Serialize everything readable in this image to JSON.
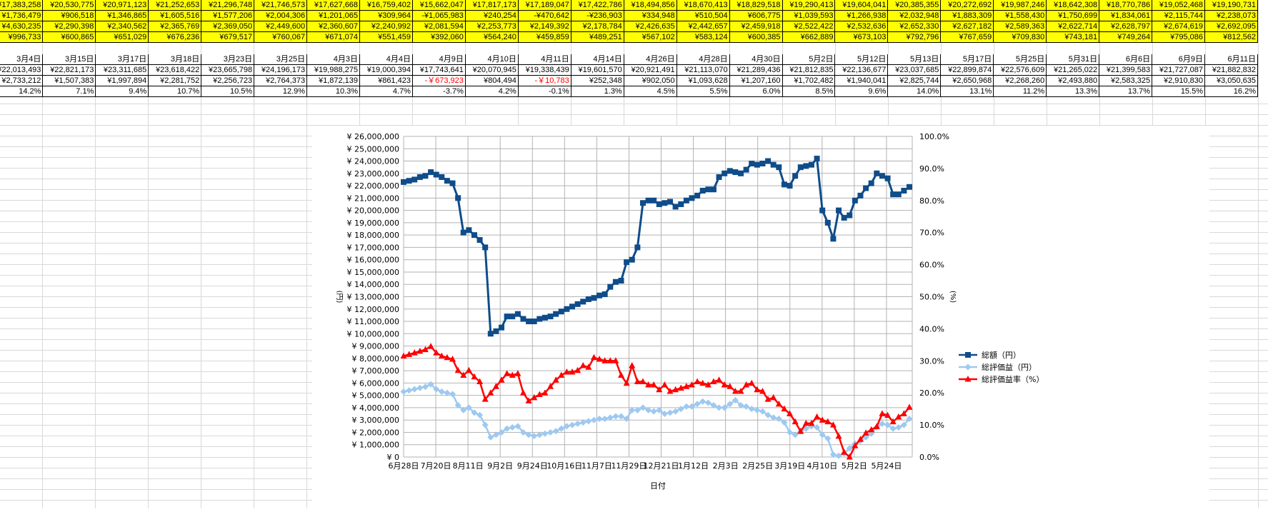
{
  "sheet": {
    "yellow_rows": [
      [
        "¥17,383,258",
        "¥20,530,775",
        "¥20,971,123",
        "¥21,252,653",
        "¥21,296,748",
        "¥21,746,573",
        "¥17,627,668",
        "¥16,759,402",
        "¥15,662,047",
        "¥17,817,173",
        "¥17,189,047",
        "¥17,422,786",
        "¥18,494,856",
        "¥18,670,413",
        "¥18,829,518",
        "¥19,290,413",
        "¥19,604,041",
        "¥20,385,355",
        "¥20,272,692",
        "¥19,987,246",
        "¥18,642,308",
        "¥18,770,786",
        "¥19,052,468",
        "¥19,190,731"
      ],
      [
        "¥1,736,479",
        "¥906,518",
        "¥1,346,865",
        "¥1,605,516",
        "¥1,577,206",
        "¥2,004,306",
        "¥1,201,065",
        "¥309,964",
        "-¥1,065,983",
        "¥240,254",
        "-¥470,642",
        "-¥236,903",
        "¥334,948",
        "¥510,504",
        "¥606,775",
        "¥1,039,593",
        "¥1,266,938",
        "¥2,032,948",
        "¥1,883,309",
        "¥1,558,430",
        "¥1,750,699",
        "¥1,834,061",
        "¥2,115,744",
        "¥2,238,073"
      ],
      [
        "¥4,630,235",
        "¥2,290,398",
        "¥2,340,562",
        "¥2,365,769",
        "¥2,369,050",
        "¥2,449,600",
        "¥2,360,607",
        "¥2,240,992",
        "¥2,081,594",
        "¥2,253,773",
        "¥2,149,392",
        "¥2,178,784",
        "¥2,426,635",
        "¥2,442,657",
        "¥2,459,918",
        "¥2,522,422",
        "¥2,532,636",
        "¥2,652,330",
        "¥2,627,182",
        "¥2,589,363",
        "¥2,622,714",
        "¥2,628,797",
        "¥2,674,619",
        "¥2,692,095"
      ],
      [
        "¥996,733",
        "¥600,865",
        "¥651,029",
        "¥676,236",
        "¥679,517",
        "¥760,067",
        "¥671,074",
        "¥551,459",
        "¥392,060",
        "¥564,240",
        "¥459,859",
        "¥489,251",
        "¥567,102",
        "¥583,124",
        "¥600,385",
        "¥662,889",
        "¥673,103",
        "¥792,796",
        "¥767,659",
        "¥709,830",
        "¥743,181",
        "¥749,264",
        "¥795,086",
        "¥812,562"
      ]
    ],
    "dates": [
      "3月4日",
      "3月15日",
      "3月17日",
      "3月18日",
      "3月23日",
      "3月25日",
      "4月3日",
      "4月4日",
      "4月9日",
      "4月10日",
      "4月11日",
      "4月14日",
      "4月26日",
      "4月28日",
      "4月30日",
      "5月2日",
      "5月12日",
      "5月13日",
      "5月17日",
      "5月25日",
      "5月31日",
      "6月6日",
      "6月9日",
      "6月11日"
    ],
    "totals": [
      "¥22,013,493",
      "¥22,821,173",
      "¥23,311,685",
      "¥23,618,422",
      "¥23,665,798",
      "¥24,196,173",
      "¥19,988,275",
      "¥19,000,394",
      "¥17,743,641",
      "¥20,070,945",
      "¥19,338,439",
      "¥19,601,570",
      "¥20,921,491",
      "¥21,113,070",
      "¥21,289,436",
      "¥21,812,835",
      "¥22,136,677",
      "¥23,037,685",
      "¥22,899,874",
      "¥22,576,609",
      "¥21,265,022",
      "¥21,399,583",
      "¥21,727,087",
      "¥21,882,832"
    ],
    "gains": [
      "¥2,733,212",
      "¥1,507,383",
      "¥1,997,894",
      "¥2,281,752",
      "¥2,256,723",
      "¥2,764,373",
      "¥1,872,139",
      "¥861,423",
      "-￥673,923",
      "¥804,494",
      "-￥10,783",
      "¥252,348",
      "¥902,050",
      "¥1,093,628",
      "¥1,207,160",
      "¥1,702,482",
      "¥1,940,041",
      "¥2,825,744",
      "¥2,650,968",
      "¥2,268,260",
      "¥2,493,880",
      "¥2,583,325",
      "¥2,910,830",
      "¥3,050,635"
    ],
    "rates": [
      "14.2%",
      "7.1%",
      "9.4%",
      "10.7%",
      "10.5%",
      "12.9%",
      "10.3%",
      "4.7%",
      "-3.7%",
      "4.2%",
      "-0.1%",
      "1.3%",
      "4.5%",
      "5.5%",
      "6.0%",
      "8.5%",
      "9.6%",
      "14.0%",
      "13.1%",
      "11.2%",
      "13.3%",
      "13.7%",
      "15.5%",
      "16.2%"
    ]
  },
  "colors": {
    "total": "#0f4c8a",
    "gain": "#9ec9f0",
    "rate": "#ff0000",
    "grid": "#b3b3b3",
    "negative_text": "#ff0000"
  },
  "chart_data": {
    "type": "line",
    "xlabel": "日付",
    "ylabel_left": "(円)",
    "ylabel_right": "(%)",
    "ylim_left": [
      0,
      26000000
    ],
    "ylim_right": [
      0,
      100
    ],
    "left_ticks": [
      "¥ 26,000,000",
      "¥ 25,000,000",
      "¥ 24,000,000",
      "¥ 23,000,000",
      "¥ 22,000,000",
      "¥ 21,000,000",
      "¥ 20,000,000",
      "¥ 19,000,000",
      "¥ 18,000,000",
      "¥ 17,000,000",
      "¥ 16,000,000",
      "¥ 15,000,000",
      "¥ 14,000,000",
      "¥ 13,000,000",
      "¥ 12,000,000",
      "¥ 11,000,000",
      "¥ 10,000,000",
      "¥ 9,000,000",
      "¥ 8,000,000",
      "¥ 7,000,000",
      "¥ 6,000,000",
      "¥ 5,000,000",
      "¥ 4,000,000",
      "¥ 3,000,000",
      "¥ 2,000,000",
      "¥ 1,000,000",
      "¥ 0"
    ],
    "right_ticks": [
      "100.0%",
      "90.0%",
      "80.0%",
      "70.0%",
      "60.0%",
      "50.0%",
      "40.0%",
      "30.0%",
      "20.0%",
      "10.0%",
      "0.0%"
    ],
    "x_tick_labels": [
      "6月28日",
      "7月20日",
      "8月11日",
      "9月2日",
      "9月24日",
      "10月16日",
      "11月7日",
      "11月29日",
      "12月21日",
      "1月12日",
      "2月3日",
      "2月25日",
      "3月19日",
      "4月10日",
      "5月2日",
      "5月24日"
    ],
    "grid": true,
    "legend_placement": "right",
    "series": [
      {
        "name": "総額（円）",
        "values": [
          22300000,
          22400000,
          22500000,
          22700000,
          22800000,
          23100000,
          22900000,
          22700000,
          22400000,
          22200000,
          21000000,
          18200000,
          18400000,
          18000000,
          17600000,
          17000000,
          10000000,
          10200000,
          10500000,
          11400000,
          11400000,
          11600000,
          11200000,
          11000000,
          11000000,
          11200000,
          11300000,
          11400000,
          11600000,
          11800000,
          12000000,
          12200000,
          12400000,
          12600000,
          12800000,
          12900000,
          13100000,
          13200000,
          13800000,
          14200000,
          14300000,
          15800000,
          16000000,
          17000000,
          20600000,
          20800000,
          20800000,
          20500000,
          20600000,
          20700000,
          20300000,
          20500000,
          20800000,
          21000000,
          21200000,
          21600000,
          21700000,
          21700000,
          22700000,
          23000000,
          23200000,
          23100000,
          23000000,
          23300000,
          23800000,
          23700000,
          23800000,
          24000000,
          23700000,
          23500000,
          22100000,
          22000000,
          22800000,
          23500000,
          23600000,
          23700000,
          24200000,
          20000000,
          19000000,
          17700000,
          20000000,
          19400000,
          19600000,
          20800000,
          21200000,
          21800000,
          22200000,
          23000000,
          22800000,
          22600000,
          21300000,
          21300000,
          21600000,
          21900000
        ]
      },
      {
        "name": "総評価益（円）",
        "values": [
          5300000,
          5400000,
          5500000,
          5600000,
          5700000,
          5900000,
          5500000,
          5300000,
          5200000,
          5100000,
          4200000,
          3800000,
          4000000,
          3600000,
          3400000,
          2600000,
          1600000,
          1800000,
          2000000,
          2300000,
          2400000,
          2500000,
          2000000,
          1800000,
          1700000,
          1800000,
          1900000,
          2000000,
          2100000,
          2300000,
          2500000,
          2600000,
          2700000,
          2800000,
          2900000,
          3000000,
          3100000,
          3100000,
          3200000,
          3300000,
          3300000,
          3100000,
          3800000,
          3800000,
          4000000,
          3800000,
          3700000,
          3800000,
          3500000,
          3600000,
          3700000,
          3900000,
          4100000,
          4100000,
          4300000,
          4500000,
          4400000,
          4200000,
          4000000,
          4000000,
          4300000,
          4600000,
          4200000,
          4100000,
          3900000,
          3800000,
          3700000,
          3400000,
          3200000,
          3100000,
          2800000,
          2000000,
          1800000,
          2100000,
          2300000,
          2500000,
          2400000,
          1800000,
          1500000,
          200000,
          100000,
          300000,
          700000,
          1100000,
          1300000,
          1600000,
          1900000,
          2400000,
          2700000,
          2600000,
          2300000,
          2400000,
          2600000,
          3100000
        ]
      },
      {
        "name": "総評価益率（%）",
        "values": [
          31.5,
          32.0,
          32.5,
          33.0,
          33.5,
          34.5,
          32.5,
          31.5,
          31.0,
          30.5,
          27.0,
          25.5,
          27.0,
          25.0,
          23.5,
          18.0,
          20.0,
          22.0,
          24.0,
          26.0,
          25.5,
          26.0,
          20.0,
          17.5,
          18.5,
          19.5,
          20.0,
          22.0,
          24.0,
          25.5,
          26.5,
          26.5,
          27.0,
          28.5,
          28.0,
          31.0,
          30.5,
          30.0,
          30.0,
          30.0,
          25.5,
          23.0,
          28.5,
          23.5,
          23.5,
          22.5,
          22.5,
          21.0,
          22.5,
          20.5,
          21.0,
          21.5,
          22.0,
          22.5,
          23.5,
          23.0,
          22.5,
          23.5,
          24.0,
          22.5,
          22.0,
          20.5,
          20.5,
          22.5,
          23.0,
          21.0,
          20.5,
          18.0,
          18.5,
          16.5,
          15.0,
          13.5,
          11.0,
          8.0,
          10.5,
          10.5,
          12.5,
          11.5,
          11.0,
          10.0,
          6.5,
          1.5,
          0.0,
          3.5,
          5.5,
          7.5,
          8.5,
          9.5,
          13.5,
          13.0,
          11.0,
          12.5,
          13.5,
          15.5
        ]
      }
    ]
  }
}
